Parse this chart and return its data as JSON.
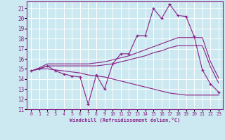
{
  "xlabel": "Windchill (Refroidissement éolien,°C)",
  "background_color": "#cce8f0",
  "grid_color": "#ffffff",
  "line_color": "#882288",
  "xlim": [
    -0.5,
    23.5
  ],
  "ylim": [
    11,
    21.7
  ],
  "yticks": [
    11,
    12,
    13,
    14,
    15,
    16,
    17,
    18,
    19,
    20,
    21
  ],
  "xticks": [
    0,
    1,
    2,
    3,
    4,
    5,
    6,
    7,
    8,
    9,
    10,
    11,
    12,
    13,
    14,
    15,
    16,
    17,
    18,
    19,
    20,
    21,
    22,
    23
  ],
  "series": [
    {
      "x": [
        0,
        1,
        2,
        3,
        4,
        5,
        6,
        7,
        8,
        9,
        10,
        11,
        12,
        13,
        14,
        15,
        16,
        17,
        18,
        19,
        20,
        21,
        22,
        23
      ],
      "y": [
        14.8,
        15.0,
        15.3,
        14.8,
        14.5,
        14.3,
        14.2,
        11.5,
        14.4,
        13.0,
        15.5,
        16.5,
        16.5,
        18.3,
        18.3,
        21.0,
        20.0,
        21.4,
        20.3,
        20.2,
        18.2,
        14.9,
        13.5,
        12.7
      ],
      "marker": "+"
    },
    {
      "x": [
        0,
        1,
        2,
        3,
        4,
        5,
        6,
        7,
        8,
        9,
        10,
        11,
        12,
        13,
        14,
        15,
        16,
        17,
        18,
        19,
        20,
        21,
        22,
        23
      ],
      "y": [
        14.8,
        15.1,
        15.5,
        15.5,
        15.5,
        15.5,
        15.5,
        15.5,
        15.6,
        15.7,
        15.9,
        16.1,
        16.3,
        16.6,
        16.9,
        17.2,
        17.5,
        17.8,
        18.1,
        18.1,
        18.1,
        18.1,
        15.7,
        14.1
      ],
      "marker": null
    },
    {
      "x": [
        0,
        1,
        2,
        3,
        4,
        5,
        6,
        7,
        8,
        9,
        10,
        11,
        12,
        13,
        14,
        15,
        16,
        17,
        18,
        19,
        20,
        21,
        22,
        23
      ],
      "y": [
        14.8,
        15.0,
        15.3,
        15.3,
        15.3,
        15.3,
        15.3,
        15.3,
        15.3,
        15.4,
        15.5,
        15.7,
        15.9,
        16.1,
        16.3,
        16.6,
        16.8,
        17.1,
        17.3,
        17.3,
        17.3,
        17.3,
        15.2,
        13.6
      ],
      "marker": null
    },
    {
      "x": [
        0,
        1,
        2,
        3,
        4,
        5,
        6,
        7,
        8,
        9,
        10,
        11,
        12,
        13,
        14,
        15,
        16,
        17,
        18,
        19,
        20,
        21,
        22,
        23
      ],
      "y": [
        14.8,
        15.0,
        15.0,
        14.9,
        14.8,
        14.7,
        14.6,
        14.4,
        14.3,
        14.2,
        14.0,
        13.8,
        13.6,
        13.4,
        13.2,
        13.0,
        12.8,
        12.6,
        12.5,
        12.4,
        12.4,
        12.4,
        12.4,
        12.4
      ],
      "marker": null
    }
  ]
}
